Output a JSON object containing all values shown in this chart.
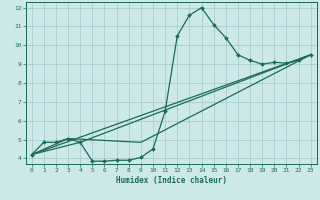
{
  "bg_color": "#cce8e8",
  "grid_color": "#aacccc",
  "line_color": "#1a6b5a",
  "xlabel": "Humidex (Indice chaleur)",
  "xlim": [
    -0.5,
    23.5
  ],
  "ylim": [
    3.7,
    12.3
  ],
  "xticks": [
    0,
    1,
    2,
    3,
    4,
    5,
    6,
    7,
    8,
    9,
    10,
    11,
    12,
    13,
    14,
    15,
    16,
    17,
    18,
    19,
    20,
    21,
    22,
    23
  ],
  "yticks": [
    4,
    5,
    6,
    7,
    8,
    9,
    10,
    11,
    12
  ],
  "main_x": [
    0,
    1,
    2,
    3,
    4,
    5,
    6,
    7,
    8,
    9,
    10,
    11,
    12,
    13,
    14,
    15,
    16,
    17,
    18,
    19,
    20,
    21,
    22,
    23
  ],
  "main_y": [
    4.2,
    4.85,
    4.85,
    5.05,
    4.85,
    3.85,
    3.85,
    3.9,
    3.9,
    4.05,
    4.5,
    6.5,
    10.5,
    11.6,
    12.0,
    11.1,
    10.4,
    9.5,
    9.2,
    9.0,
    9.1,
    9.05,
    9.2,
    9.5
  ],
  "trend1_x": [
    0,
    23
  ],
  "trend1_y": [
    4.2,
    9.5
  ],
  "trend2_x": [
    0,
    4,
    23
  ],
  "trend2_y": [
    4.2,
    4.85,
    9.5
  ],
  "trend3_x": [
    0,
    3,
    9,
    23
  ],
  "trend3_y": [
    4.2,
    5.05,
    4.85,
    9.5
  ]
}
